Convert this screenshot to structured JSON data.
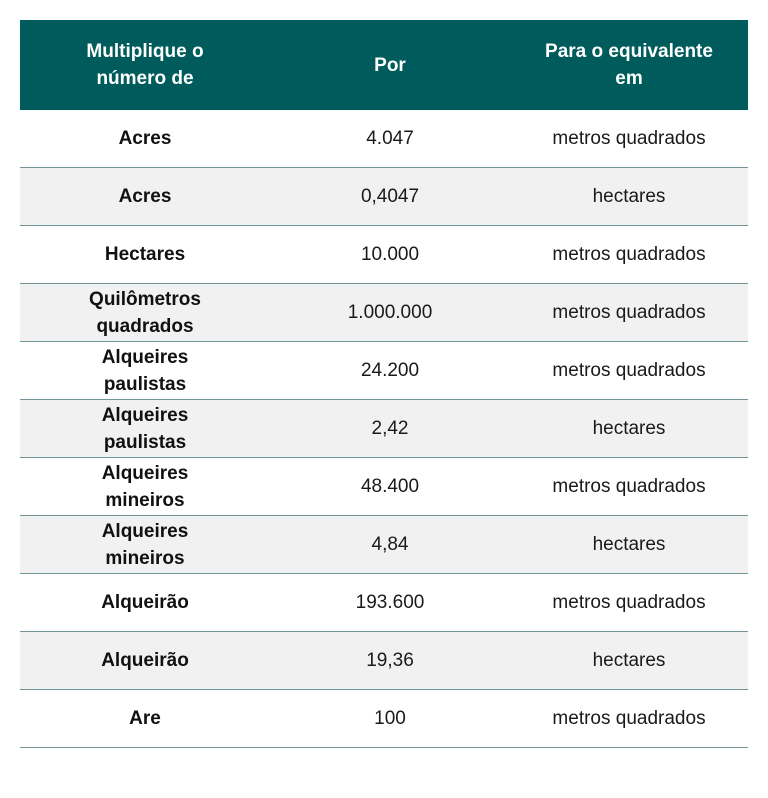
{
  "table": {
    "header": [
      "Multiplique o número de",
      "Por",
      "Para o equivalente em"
    ],
    "rows": [
      [
        "Acres",
        "4.047",
        "metros quadrados"
      ],
      [
        "Acres",
        "0,4047",
        "hectares"
      ],
      [
        "Hectares",
        "10.000",
        "metros quadrados"
      ],
      [
        "Quilômetros quadrados",
        "1.000.000",
        "metros quadrados"
      ],
      [
        "Alqueires paulistas",
        "24.200",
        "metros quadrados"
      ],
      [
        "Alqueires paulistas",
        "2,42",
        "hectares"
      ],
      [
        "Alqueires mineiros",
        "48.400",
        "metros quadrados"
      ],
      [
        "Alqueires mineiros",
        "4,84",
        "hectares"
      ],
      [
        "Alqueirão",
        "193.600",
        "metros quadrados"
      ],
      [
        "Alqueirão",
        "19,36",
        "hectares"
      ],
      [
        "Are",
        "100",
        "metros quadrados"
      ]
    ]
  }
}
